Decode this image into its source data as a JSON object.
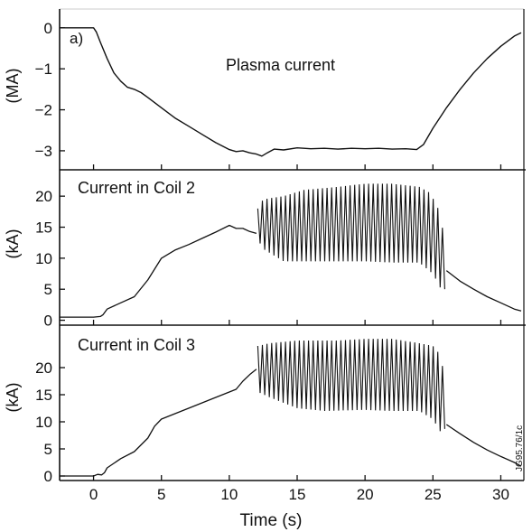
{
  "figure": {
    "panel_tag": "a)",
    "xlabel": "Time (s)",
    "side_code": "JG95.76/1c"
  },
  "chart_data": [
    {
      "type": "line",
      "title": "Plasma current",
      "xlabel": "",
      "ylabel": "(MA)",
      "xlim": [
        -2.5,
        31.7
      ],
      "ylim": [
        -3.2,
        0.15
      ],
      "xticks": [
        0,
        5,
        10,
        15,
        20,
        25,
        30
      ],
      "yticks": [
        0,
        -1,
        -2,
        -3
      ],
      "color": "#111111",
      "series": [
        {
          "x": [
            -2.5,
            0.0,
            0.2,
            0.5,
            1.0,
            1.5,
            2.0,
            2.5,
            3.0,
            3.5,
            4.0,
            5.0,
            6.0,
            7.0,
            8.0,
            9.0,
            10.0,
            10.5,
            11.0,
            11.5,
            12.0,
            12.4,
            12.8,
            13.3,
            14.0,
            15.0,
            16.0,
            17.0,
            18.0,
            19.0,
            20.0,
            21.0,
            22.0,
            23.0,
            23.8,
            24.3,
            25.0,
            26.0,
            27.0,
            28.0,
            29.0,
            30.0,
            31.0,
            31.5
          ],
          "y": [
            0.0,
            0.0,
            -0.1,
            -0.35,
            -0.75,
            -1.1,
            -1.3,
            -1.45,
            -1.5,
            -1.58,
            -1.7,
            -1.95,
            -2.2,
            -2.4,
            -2.6,
            -2.8,
            -2.97,
            -3.02,
            -3.0,
            -3.05,
            -3.08,
            -3.13,
            -3.05,
            -2.96,
            -2.98,
            -2.93,
            -2.95,
            -2.94,
            -2.96,
            -2.94,
            -2.95,
            -2.94,
            -2.96,
            -2.95,
            -2.97,
            -2.85,
            -2.45,
            -1.95,
            -1.5,
            -1.1,
            -0.75,
            -0.45,
            -0.2,
            -0.12
          ]
        }
      ]
    },
    {
      "type": "line",
      "title": "Current in Coil 2",
      "xlabel": "",
      "ylabel": "(kA)",
      "xlim": [
        -2.5,
        31.7
      ],
      "ylim": [
        -0.5,
        22.5
      ],
      "xticks": [
        0,
        5,
        10,
        15,
        20,
        25,
        30
      ],
      "yticks": [
        0,
        5,
        10,
        15,
        20
      ],
      "color": "#111111",
      "series": [
        {
          "x": [
            -2.5,
            0.0,
            0.5,
            0.7,
            1.0,
            2.0,
            3.0,
            4.0,
            5.0,
            6.0,
            7.0,
            8.0,
            9.0,
            10.0,
            10.5,
            11.0,
            11.5,
            12.0
          ],
          "y": [
            0.5,
            0.5,
            0.6,
            0.9,
            1.8,
            2.8,
            3.8,
            6.5,
            10.0,
            11.3,
            12.2,
            13.2,
            14.2,
            15.3,
            14.8,
            14.8,
            14.3,
            14.0
          ]
        },
        {
          "x": [
            26.0,
            27.0,
            28.0,
            29.0,
            30.0,
            31.0,
            31.5
          ],
          "y": [
            8.0,
            6.3,
            5.0,
            3.8,
            2.8,
            1.8,
            1.5
          ]
        }
      ],
      "oscillation": {
        "t_start": 12.1,
        "t_end": 26.0,
        "period_s": 0.34,
        "upper_envelope": [
          [
            12.1,
            18.0
          ],
          [
            12.5,
            19.5
          ],
          [
            14.0,
            20.0
          ],
          [
            15.5,
            21.0
          ],
          [
            18.0,
            21.5
          ],
          [
            20.0,
            22.0
          ],
          [
            22.0,
            22.0
          ],
          [
            24.0,
            21.5
          ],
          [
            24.8,
            20.5
          ],
          [
            25.5,
            17.5
          ],
          [
            26.0,
            11.0
          ]
        ],
        "lower_envelope": [
          [
            12.1,
            13.0
          ],
          [
            12.5,
            11.5
          ],
          [
            14.0,
            9.5
          ],
          [
            16.0,
            9.5
          ],
          [
            18.0,
            9.5
          ],
          [
            20.0,
            9.5
          ],
          [
            22.0,
            9.3
          ],
          [
            24.0,
            9.3
          ],
          [
            25.0,
            7.5
          ],
          [
            25.6,
            5.0
          ],
          [
            26.0,
            5.0
          ]
        ]
      }
    },
    {
      "type": "line",
      "title": "Current in Coil 3",
      "xlabel": "Time (s)",
      "ylabel": "(kA)",
      "xlim": [
        -2.5,
        31.7
      ],
      "ylim": [
        -0.5,
        26.0
      ],
      "xticks": [
        0,
        5,
        10,
        15,
        20,
        25,
        30
      ],
      "yticks": [
        0,
        5,
        10,
        15,
        20
      ],
      "color": "#111111",
      "series": [
        {
          "x": [
            -2.5,
            0.0,
            0.3,
            0.6,
            0.8,
            1.0,
            2.0,
            3.0,
            4.0,
            4.5,
            5.0,
            6.0,
            7.0,
            8.0,
            9.0,
            10.0,
            10.5,
            11.0,
            11.5,
            12.0
          ],
          "y": [
            0.0,
            0.0,
            0.3,
            0.2,
            0.6,
            1.5,
            3.2,
            4.5,
            7.0,
            9.2,
            10.5,
            11.5,
            12.5,
            13.5,
            14.5,
            15.5,
            16.0,
            17.5,
            18.7,
            19.7
          ]
        },
        {
          "x": [
            26.0,
            27.0,
            28.0,
            29.0,
            30.0,
            31.0,
            31.5
          ],
          "y": [
            9.5,
            7.8,
            6.2,
            4.8,
            3.6,
            2.5,
            1.8
          ]
        }
      ],
      "oscillation": {
        "t_start": 12.1,
        "t_end": 26.0,
        "period_s": 0.34,
        "upper_envelope": [
          [
            12.1,
            24.0
          ],
          [
            13.0,
            24.5
          ],
          [
            15.0,
            25.0
          ],
          [
            18.0,
            25.0
          ],
          [
            20.0,
            25.3
          ],
          [
            22.0,
            25.3
          ],
          [
            24.0,
            24.5
          ],
          [
            25.0,
            24.0
          ],
          [
            25.5,
            22.5
          ],
          [
            26.0,
            17.0
          ]
        ],
        "lower_envelope": [
          [
            12.1,
            15.5
          ],
          [
            13.0,
            14.5
          ],
          [
            15.0,
            12.5
          ],
          [
            17.0,
            12.0
          ],
          [
            20.0,
            12.2
          ],
          [
            22.0,
            12.0
          ],
          [
            24.0,
            12.0
          ],
          [
            25.0,
            10.5
          ],
          [
            25.6,
            8.0
          ],
          [
            26.0,
            9.0
          ]
        ]
      }
    }
  ]
}
